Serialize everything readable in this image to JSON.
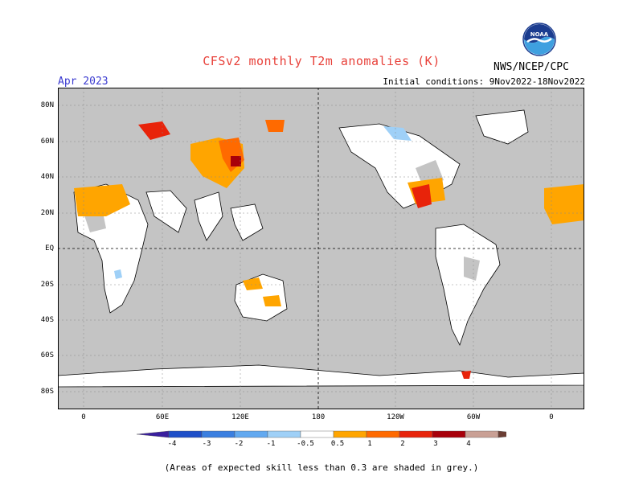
{
  "header": {
    "title": "CFSv2 monthly T2m anomalies (K)",
    "month": "Apr 2023",
    "initial_conditions": "Initial conditions: 9Nov2022-18Nov2022",
    "agency": "NWS/NCEP/CPC",
    "logo_text": "NOAA"
  },
  "axes": {
    "lat_labels": [
      "80N",
      "60N",
      "40N",
      "20N",
      "EQ",
      "20S",
      "40S",
      "60S",
      "80S"
    ],
    "lon_labels": [
      "0",
      "60E",
      "120E",
      "180",
      "120W",
      "60W",
      "0"
    ]
  },
  "colorbar": {
    "labels": [
      "-4",
      "-3",
      "-2",
      "-1",
      "-0.5",
      "0.5",
      "1",
      "2",
      "3",
      "4"
    ],
    "colors": [
      "#3a1f9e",
      "#1e4fc8",
      "#3b7fe0",
      "#62a9f0",
      "#9fd0f7",
      "#ffffff",
      "#ffa500",
      "#ff6a00",
      "#e8230a",
      "#a8000a",
      "#c9a095",
      "#6b3e34"
    ]
  },
  "note": "(Areas of expected skill less than 0.3 are shaded in grey.)",
  "colors": {
    "skill_grey": "#c4c4c4",
    "no_signal": "#ffffff"
  }
}
